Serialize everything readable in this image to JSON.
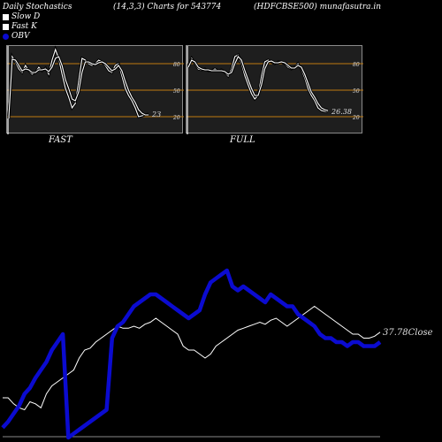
{
  "header": {
    "left": "Daily Stochastics",
    "params": "(14,3,3) Charts for 543774",
    "site": "(HDFCBSE500) munafasutra.in"
  },
  "legend": [
    {
      "label": "Slow  D",
      "color": "#ffffff"
    },
    {
      "label": "Fast K",
      "color": "#ffffff"
    },
    {
      "label": "OBV",
      "color": "#0b0bd0"
    }
  ],
  "colors": {
    "background": "#000000",
    "panel": "#1e1e1e",
    "level_line": "#c07a10",
    "obv": "#0b0bd0",
    "price": "#ffffff"
  },
  "chart_data": [
    {
      "type": "line",
      "panel": "FAST",
      "title": "FAST",
      "ylim": [
        0,
        100
      ],
      "levels": [
        80,
        50,
        20
      ],
      "last_value_label": "23",
      "series": [
        {
          "name": "Fast K",
          "values": [
            18,
            88,
            82,
            74,
            70,
            78,
            72,
            68,
            70,
            76,
            72,
            75,
            68,
            84,
            96,
            86,
            68,
            52,
            42,
            30,
            35,
            60,
            86,
            84,
            80,
            78,
            80,
            84,
            82,
            78,
            72,
            70,
            78,
            80,
            66,
            52,
            44,
            38,
            30,
            20,
            21,
            22,
            23
          ]
        },
        {
          "name": "Slow  D",
          "values": [
            20,
            85,
            84,
            78,
            72,
            74,
            73,
            70,
            70,
            73,
            73,
            74,
            71,
            76,
            86,
            88,
            78,
            62,
            52,
            40,
            38,
            48,
            70,
            82,
            82,
            80,
            79,
            81,
            82,
            80,
            76,
            72,
            74,
            78,
            72,
            60,
            50,
            42,
            36,
            28,
            24,
            22,
            22
          ]
        }
      ]
    },
    {
      "type": "line",
      "panel": "FULL",
      "title": "FULL",
      "ylim": [
        0,
        100
      ],
      "levels": [
        80,
        50,
        20
      ],
      "last_value_label": "26.38",
      "series": [
        {
          "name": "Fast K",
          "values": [
            78,
            86,
            80,
            74,
            73,
            74,
            72,
            72,
            74,
            72,
            73,
            70,
            66,
            74,
            88,
            90,
            80,
            66,
            56,
            46,
            40,
            44,
            66,
            82,
            84,
            82,
            80,
            82,
            82,
            80,
            76,
            74,
            76,
            80,
            74,
            64,
            52,
            44,
            38,
            30,
            27,
            26,
            26
          ]
        },
        {
          "name": "Slow  D",
          "values": [
            76,
            84,
            82,
            76,
            74,
            73,
            73,
            72,
            72,
            72,
            72,
            71,
            68,
            70,
            80,
            88,
            84,
            72,
            62,
            52,
            44,
            44,
            56,
            74,
            82,
            83,
            81,
            81,
            82,
            81,
            78,
            75,
            75,
            78,
            76,
            68,
            58,
            48,
            42,
            35,
            30,
            28,
            27
          ]
        }
      ]
    },
    {
      "type": "line",
      "panel": "price",
      "last_value_label": "37.78",
      "close_label": "Close",
      "series": [
        {
          "name": "Close",
          "values": [
            20,
            20,
            17,
            15,
            14,
            18,
            17,
            15,
            22,
            26,
            28,
            30,
            32,
            34,
            40,
            44,
            45,
            48,
            50,
            52,
            54,
            56,
            55,
            55,
            56,
            55,
            57,
            58,
            60,
            58,
            56,
            54,
            52,
            46,
            44,
            44,
            42,
            40,
            42,
            46,
            48,
            50,
            52,
            54,
            55,
            56,
            57,
            58,
            57,
            59,
            60,
            58,
            56,
            58,
            60,
            62,
            64,
            66,
            64,
            62,
            60,
            58,
            56,
            54,
            52,
            52,
            50,
            50,
            51,
            53
          ]
        },
        {
          "name": "OBV",
          "values": [
            5,
            8,
            12,
            16,
            22,
            25,
            30,
            34,
            38,
            44,
            48,
            52,
            0,
            2,
            4,
            6,
            8,
            10,
            12,
            14,
            50,
            56,
            58,
            62,
            66,
            68,
            70,
            72,
            72,
            70,
            68,
            66,
            64,
            62,
            60,
            62,
            64,
            72,
            78,
            80,
            82,
            84,
            76,
            74,
            76,
            74,
            72,
            70,
            68,
            72,
            70,
            68,
            66,
            66,
            62,
            60,
            58,
            56,
            52,
            50,
            50,
            48,
            48,
            46,
            48,
            48,
            46,
            46,
            46,
            48
          ]
        }
      ]
    }
  ]
}
